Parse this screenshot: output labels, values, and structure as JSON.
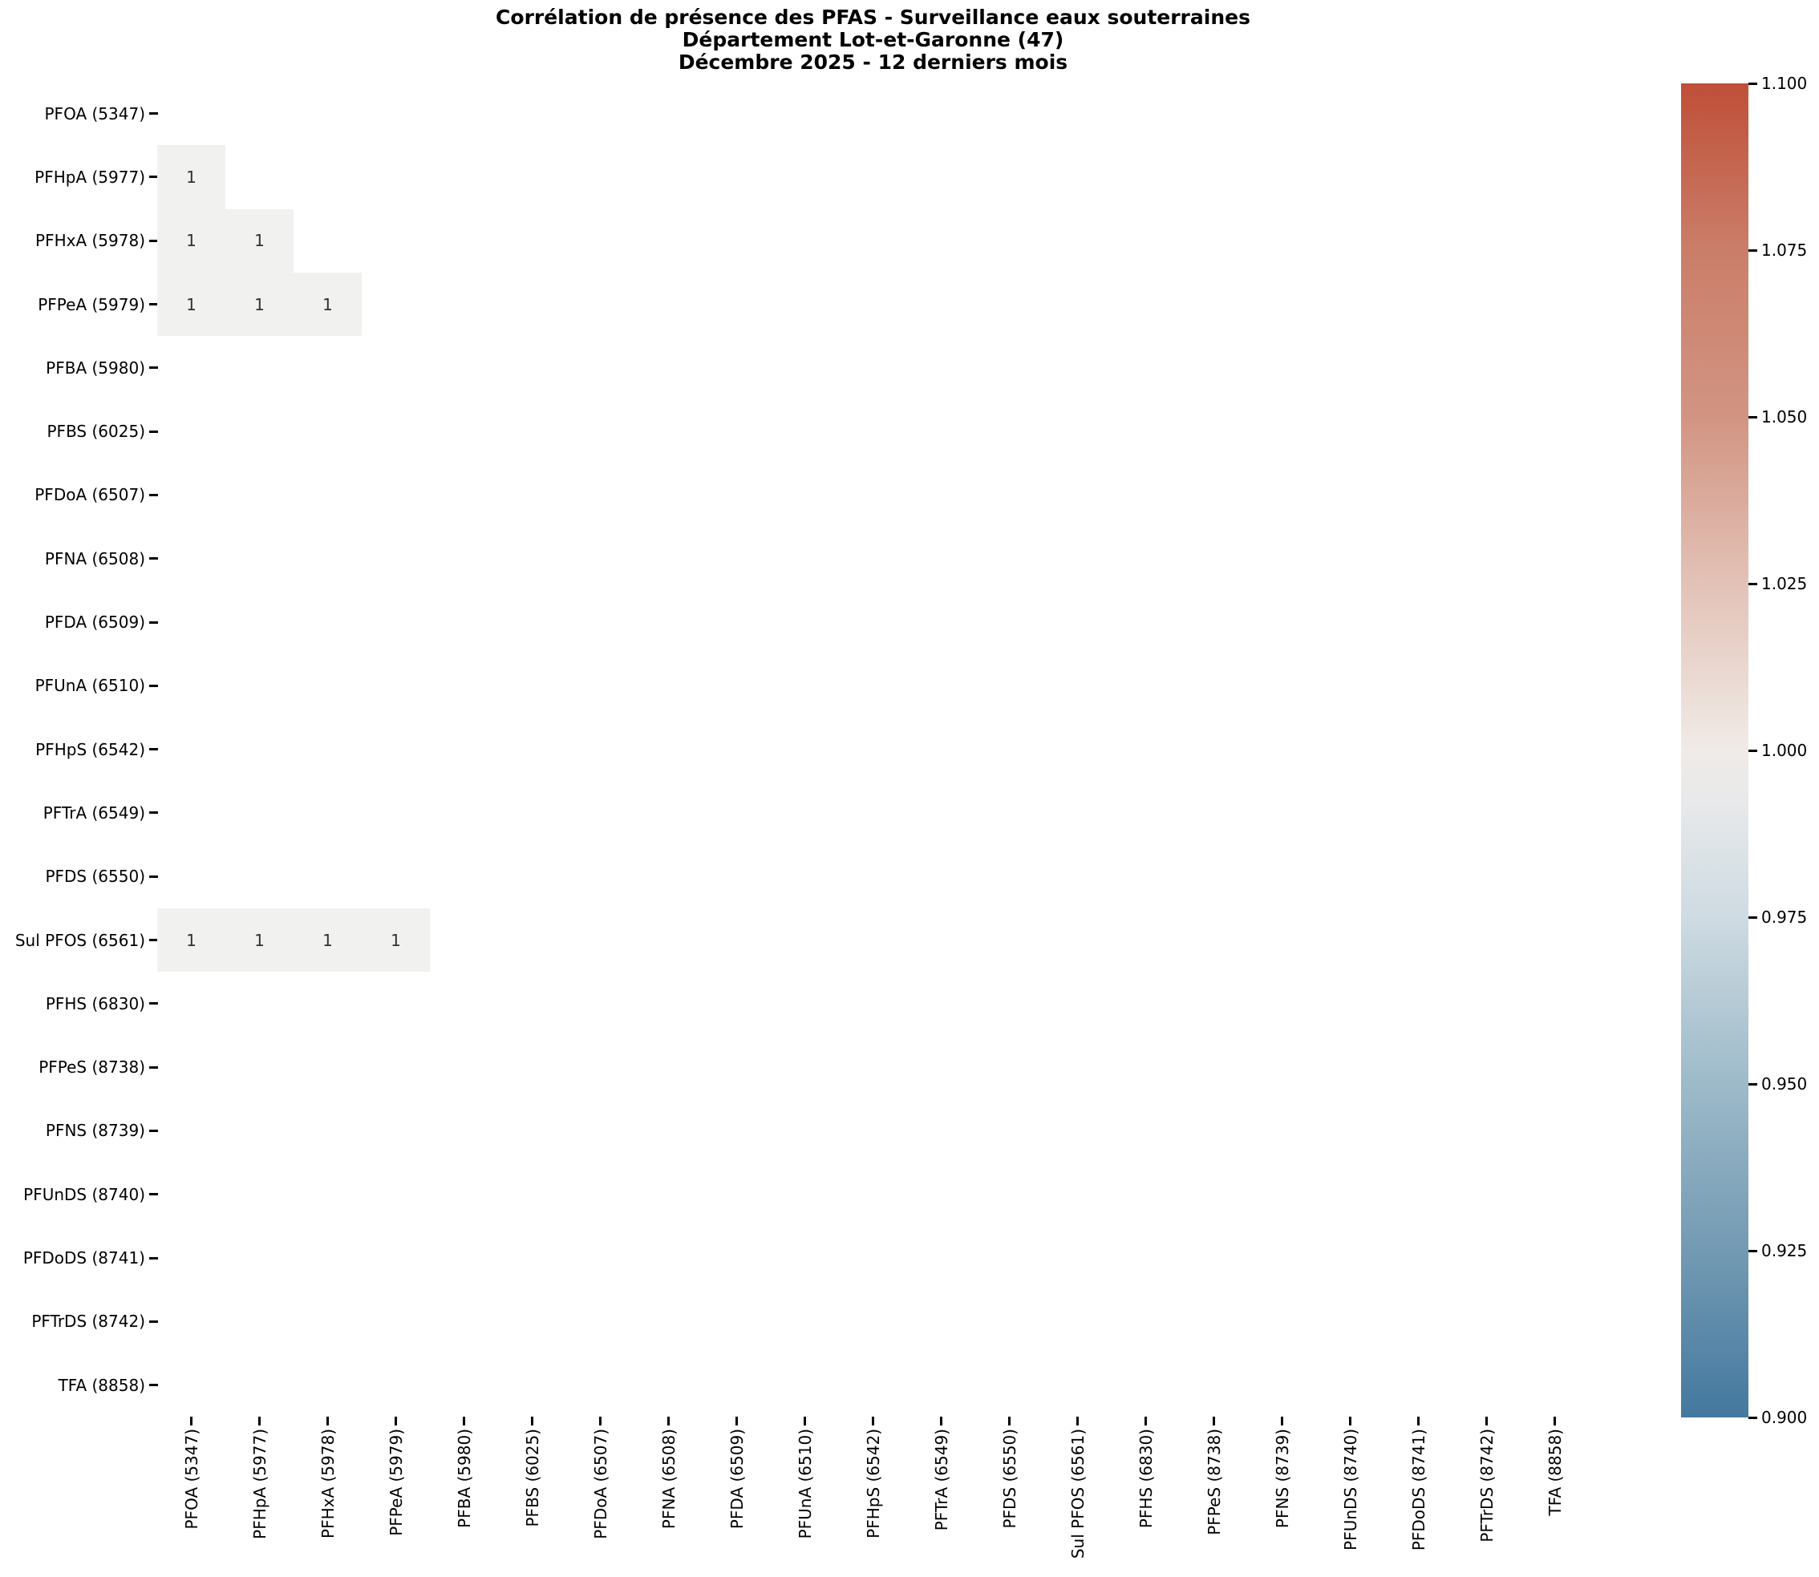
{
  "title": {
    "line1": "Corrélation de présence des PFAS - Surveillance eaux souterraines",
    "line2": "Département Lot-et-Garonne (47)",
    "line3": "Décembre 2025 - 12 derniers mois"
  },
  "chart_data": {
    "type": "heatmap",
    "title": "Corrélation de présence des PFAS - Surveillance eaux souterraines",
    "subtitle1": "Département Lot-et-Garonne (47)",
    "subtitle2": "Décembre 2025 - 12 derniers mois",
    "x_labels": [
      "PFOA (5347)",
      "PFHpA (5977)",
      "PFHxA (5978)",
      "PFPeA (5979)",
      "PFBA (5980)",
      "PFBS (6025)",
      "PFDoA (6507)",
      "PFNA (6508)",
      "PFDA (6509)",
      "PFUnA (6510)",
      "PFHpS (6542)",
      "PFTrA (6549)",
      "PFDS (6550)",
      "Sul PFOS (6561)",
      "PFHS (6830)",
      "PFPeS (8738)",
      "PFNS (8739)",
      "PFUnDS (8740)",
      "PFDoDS (8741)",
      "PFTrDS (8742)",
      "TFA (8858)"
    ],
    "y_labels": [
      "PFOA (5347)",
      "PFHpA (5977)",
      "PFHxA (5978)",
      "PFPeA (5979)",
      "PFBA (5980)",
      "PFBS (6025)",
      "PFDoA (6507)",
      "PFNA (6508)",
      "PFDA (6509)",
      "PFUnA (6510)",
      "PFHpS (6542)",
      "PFTrA (6549)",
      "PFDS (6550)",
      "Sul PFOS (6561)",
      "PFHS (6830)",
      "PFPeS (8738)",
      "PFNS (8739)",
      "PFUnDS (8740)",
      "PFDoDS (8741)",
      "PFTrDS (8742)",
      "TFA (8858)"
    ],
    "cells": [
      {
        "row": "PFHpA (5977)",
        "col": "PFOA (5347)",
        "value": "1"
      },
      {
        "row": "PFHxA (5978)",
        "col": "PFOA (5347)",
        "value": "1"
      },
      {
        "row": "PFHxA (5978)",
        "col": "PFHpA (5977)",
        "value": "1"
      },
      {
        "row": "PFPeA (5979)",
        "col": "PFOA (5347)",
        "value": "1"
      },
      {
        "row": "PFPeA (5979)",
        "col": "PFHpA (5977)",
        "value": "1"
      },
      {
        "row": "PFPeA (5979)",
        "col": "PFHxA (5978)",
        "value": "1"
      },
      {
        "row": "Sul PFOS (6561)",
        "col": "PFOA (5347)",
        "value": "1"
      },
      {
        "row": "Sul PFOS (6561)",
        "col": "PFHpA (5977)",
        "value": "1"
      },
      {
        "row": "Sul PFOS (6561)",
        "col": "PFHxA (5978)",
        "value": "1"
      },
      {
        "row": "Sul PFOS (6561)",
        "col": "PFPeA (5979)",
        "value": "1"
      }
    ],
    "empty_cells_rendered": "blank / masked (white)",
    "cell_fill_color": "#f1f1f0",
    "annotation_color": "#303030",
    "grid": false,
    "legend_position": "right colorbar",
    "colorbar": {
      "min": 0.9,
      "max": 1.1,
      "ticks": [
        "1.100",
        "1.075",
        "1.050",
        "1.025",
        "1.000",
        "0.975",
        "0.950",
        "0.925",
        "0.900"
      ],
      "top_color": "#bf4f38",
      "mid_color": "#f0ebe7",
      "bottom_color": "#44789f"
    }
  }
}
